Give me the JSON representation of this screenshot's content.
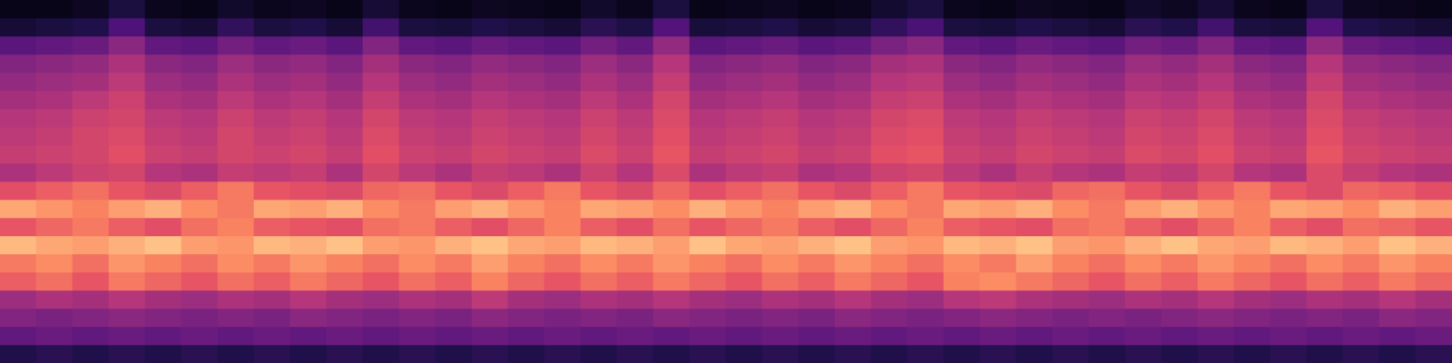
{
  "chart_data": {
    "type": "heatmap",
    "tick_labels": false,
    "grid": false,
    "zlim": [
      0,
      100
    ],
    "cells": [
      [
        4,
        4,
        6,
        12,
        5,
        4,
        8,
        5,
        6,
        4,
        10,
        5,
        4,
        6,
        5,
        4,
        8,
        5,
        12,
        4,
        5,
        6,
        4,
        5,
        9,
        12,
        5,
        4,
        6,
        5,
        4,
        8,
        6,
        10,
        5,
        4,
        12,
        6,
        5,
        4
      ],
      [
        10,
        12,
        14,
        25,
        12,
        10,
        18,
        12,
        14,
        10,
        22,
        12,
        11,
        14,
        12,
        10,
        16,
        13,
        26,
        11,
        12,
        14,
        10,
        12,
        18,
        24,
        12,
        11,
        14,
        12,
        10,
        16,
        14,
        22,
        12,
        11,
        26,
        14,
        12,
        10
      ],
      [
        28,
        30,
        32,
        40,
        30,
        28,
        34,
        30,
        32,
        28,
        38,
        30,
        28,
        32,
        30,
        28,
        34,
        30,
        42,
        28,
        30,
        32,
        28,
        30,
        36,
        40,
        30,
        28,
        32,
        30,
        28,
        34,
        32,
        38,
        30,
        28,
        42,
        32,
        30,
        28
      ],
      [
        38,
        40,
        42,
        48,
        40,
        38,
        44,
        40,
        42,
        38,
        46,
        40,
        38,
        42,
        40,
        38,
        44,
        40,
        50,
        38,
        40,
        42,
        38,
        40,
        46,
        48,
        40,
        38,
        42,
        40,
        38,
        44,
        42,
        46,
        40,
        38,
        50,
        42,
        40,
        38
      ],
      [
        42,
        44,
        46,
        52,
        44,
        42,
        48,
        44,
        46,
        42,
        50,
        44,
        42,
        46,
        44,
        42,
        48,
        44,
        54,
        42,
        44,
        46,
        42,
        44,
        50,
        52,
        44,
        42,
        46,
        44,
        42,
        48,
        46,
        50,
        44,
        42,
        54,
        46,
        44,
        42
      ],
      [
        46,
        48,
        52,
        56,
        48,
        46,
        52,
        48,
        50,
        46,
        54,
        48,
        46,
        50,
        48,
        46,
        52,
        48,
        58,
        46,
        48,
        50,
        46,
        48,
        54,
        56,
        48,
        46,
        50,
        48,
        46,
        52,
        50,
        54,
        48,
        46,
        58,
        50,
        48,
        46
      ],
      [
        50,
        52,
        56,
        58,
        52,
        50,
        56,
        52,
        54,
        50,
        58,
        52,
        50,
        54,
        52,
        50,
        56,
        52,
        60,
        50,
        52,
        54,
        50,
        52,
        58,
        60,
        52,
        50,
        54,
        52,
        50,
        56,
        54,
        58,
        52,
        50,
        60,
        54,
        52,
        50
      ],
      [
        52,
        54,
        58,
        60,
        54,
        52,
        58,
        54,
        56,
        52,
        60,
        54,
        52,
        56,
        54,
        52,
        58,
        54,
        62,
        52,
        54,
        56,
        52,
        54,
        60,
        62,
        54,
        52,
        56,
        54,
        52,
        58,
        56,
        60,
        54,
        52,
        62,
        56,
        54,
        52
      ],
      [
        54,
        56,
        58,
        62,
        56,
        54,
        58,
        56,
        58,
        54,
        62,
        56,
        54,
        58,
        56,
        54,
        60,
        56,
        64,
        54,
        56,
        58,
        54,
        56,
        62,
        64,
        56,
        54,
        58,
        56,
        54,
        60,
        58,
        62,
        56,
        54,
        64,
        58,
        56,
        54
      ],
      [
        48,
        52,
        56,
        58,
        50,
        48,
        54,
        52,
        54,
        48,
        58,
        52,
        48,
        54,
        52,
        48,
        56,
        50,
        60,
        48,
        52,
        54,
        48,
        50,
        56,
        58,
        52,
        48,
        54,
        50,
        48,
        54,
        52,
        58,
        50,
        48,
        60,
        54,
        50,
        48
      ],
      [
        62,
        66,
        70,
        64,
        60,
        66,
        72,
        64,
        62,
        60,
        68,
        70,
        64,
        60,
        66,
        72,
        64,
        60,
        68,
        62,
        66,
        70,
        64,
        60,
        66,
        72,
        64,
        62,
        60,
        68,
        70,
        64,
        60,
        66,
        72,
        64,
        60,
        68,
        66,
        62
      ],
      [
        82,
        78,
        74,
        80,
        84,
        76,
        72,
        82,
        80,
        84,
        76,
        72,
        80,
        84,
        78,
        74,
        82,
        80,
        76,
        84,
        78,
        74,
        80,
        84,
        76,
        72,
        82,
        80,
        84,
        76,
        72,
        80,
        84,
        78,
        74,
        82,
        80,
        76,
        84,
        80
      ],
      [
        64,
        68,
        72,
        66,
        62,
        70,
        74,
        66,
        64,
        62,
        70,
        72,
        66,
        62,
        68,
        74,
        66,
        62,
        70,
        64,
        68,
        72,
        66,
        62,
        68,
        74,
        66,
        64,
        62,
        70,
        72,
        66,
        62,
        68,
        74,
        66,
        62,
        70,
        68,
        64
      ],
      [
        86,
        82,
        80,
        84,
        88,
        80,
        78,
        86,
        84,
        88,
        80,
        78,
        84,
        88,
        82,
        80,
        86,
        84,
        80,
        88,
        82,
        80,
        84,
        88,
        80,
        78,
        86,
        84,
        88,
        80,
        78,
        84,
        88,
        82,
        80,
        86,
        84,
        80,
        88,
        84
      ],
      [
        72,
        76,
        70,
        78,
        74,
        70,
        76,
        72,
        78,
        74,
        70,
        76,
        72,
        80,
        74,
        70,
        76,
        72,
        78,
        74,
        70,
        76,
        72,
        78,
        74,
        70,
        76,
        72,
        80,
        74,
        70,
        76,
        72,
        78,
        74,
        70,
        76,
        72,
        78,
        74
      ],
      [
        66,
        70,
        64,
        72,
        68,
        64,
        70,
        66,
        72,
        68,
        64,
        70,
        66,
        74,
        68,
        64,
        70,
        66,
        72,
        68,
        64,
        70,
        66,
        72,
        68,
        64,
        74,
        76,
        72,
        68,
        64,
        70,
        66,
        72,
        68,
        64,
        70,
        66,
        72,
        68
      ],
      [
        44,
        48,
        46,
        50,
        46,
        44,
        48,
        46,
        50,
        46,
        44,
        48,
        46,
        52,
        46,
        44,
        48,
        46,
        50,
        46,
        44,
        48,
        46,
        50,
        46,
        44,
        50,
        52,
        48,
        46,
        44,
        48,
        46,
        50,
        46,
        44,
        48,
        46,
        50,
        46
      ],
      [
        38,
        36,
        38,
        40,
        38,
        36,
        38,
        36,
        40,
        38,
        36,
        38,
        36,
        40,
        38,
        36,
        38,
        36,
        40,
        38,
        36,
        38,
        36,
        40,
        38,
        36,
        38,
        40,
        38,
        36,
        38,
        36,
        38,
        40,
        38,
        36,
        38,
        36,
        40,
        38
      ],
      [
        30,
        32,
        30,
        32,
        30,
        32,
        30,
        32,
        30,
        32,
        30,
        32,
        30,
        32,
        30,
        32,
        30,
        32,
        30,
        32,
        30,
        32,
        30,
        32,
        30,
        32,
        30,
        32,
        30,
        32,
        30,
        32,
        30,
        32,
        30,
        32,
        30,
        32,
        30,
        32
      ],
      [
        14,
        16,
        14,
        16,
        14,
        16,
        14,
        16,
        14,
        16,
        14,
        16,
        14,
        16,
        14,
        16,
        14,
        16,
        14,
        16,
        14,
        16,
        14,
        16,
        14,
        16,
        14,
        16,
        14,
        16,
        14,
        16,
        14,
        16,
        14,
        16,
        14,
        16,
        14,
        16
      ]
    ]
  }
}
